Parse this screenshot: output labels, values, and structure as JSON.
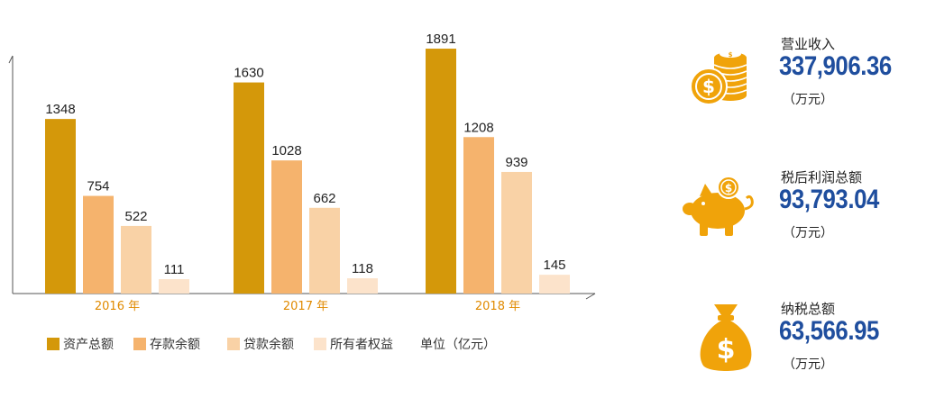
{
  "chart_data": {
    "type": "bar",
    "categories": [
      "2016 年",
      "2017 年",
      "2018 年"
    ],
    "series": [
      {
        "name": "资产总额",
        "values": [
          1348,
          1630,
          1891
        ],
        "color": "#D4980A"
      },
      {
        "name": "存款余额",
        "values": [
          754,
          1028,
          1208
        ],
        "color": "#F5B36D"
      },
      {
        "name": "贷款余额",
        "values": [
          522,
          662,
          939
        ],
        "color": "#F9D2A6"
      },
      {
        "name": "所有者权益",
        "values": [
          111,
          118,
          145
        ],
        "color": "#FCE3CB"
      }
    ],
    "unit_label": "单位（亿元）",
    "ylim": [
      0,
      2050
    ],
    "legend_position": "bottom"
  },
  "kpis": [
    {
      "label": "营业收入",
      "value": "337,906.36",
      "unit": "（万元）",
      "icon": "coins-icon"
    },
    {
      "label": "税后利润总额",
      "value": "93,793.04",
      "unit": "（万元）",
      "icon": "piggy-bank-icon"
    },
    {
      "label": "纳税总额",
      "value": "63,566.95",
      "unit": "（万元）",
      "icon": "money-bag-icon"
    }
  ],
  "colors": {
    "accent": "#F0A30A",
    "value_text": "#1F4E9E",
    "category_text": "#E08A00"
  }
}
